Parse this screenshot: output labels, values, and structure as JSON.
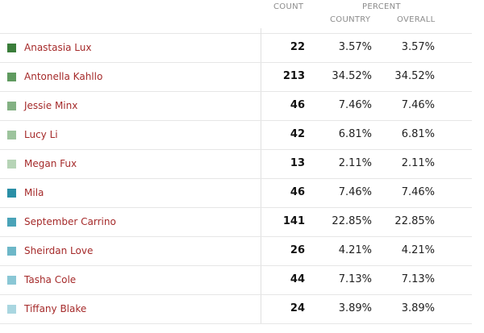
{
  "header": {
    "count_label": "COUNT",
    "percent_label": "PERCENT",
    "country_label": "COUNTRY",
    "overall_label": "OVERALL"
  },
  "rows": [
    {
      "name": "Anastasia Lux",
      "count": "22",
      "country": "3.57%",
      "overall": "3.57%",
      "color": "#3a7d3a"
    },
    {
      "name": "Antonella Kahllo",
      "count": "213",
      "country": "34.52%",
      "overall": "34.52%",
      "color": "#5f9a5f"
    },
    {
      "name": "Jessie Minx",
      "count": "46",
      "country": "7.46%",
      "overall": "7.46%",
      "color": "#83b183"
    },
    {
      "name": "Lucy Li",
      "count": "42",
      "country": "6.81%",
      "overall": "6.81%",
      "color": "#9dc49d"
    },
    {
      "name": "Megan Fux",
      "count": "13",
      "country": "2.11%",
      "overall": "2.11%",
      "color": "#b6d4b6"
    },
    {
      "name": "Mila",
      "count": "46",
      "country": "7.46%",
      "overall": "7.46%",
      "color": "#2a8fa6"
    },
    {
      "name": "September Carrino",
      "count": "141",
      "country": "22.85%",
      "overall": "22.85%",
      "color": "#4aa3b8"
    },
    {
      "name": "Sheirdan Love",
      "count": "26",
      "country": "4.21%",
      "overall": "4.21%",
      "color": "#6db7c8"
    },
    {
      "name": "Tasha Cole",
      "count": "44",
      "country": "7.13%",
      "overall": "7.13%",
      "color": "#8ac7d5"
    },
    {
      "name": "Tiffany Blake",
      "count": "24",
      "country": "3.89%",
      "overall": "3.89%",
      "color": "#a9d6e0"
    }
  ]
}
